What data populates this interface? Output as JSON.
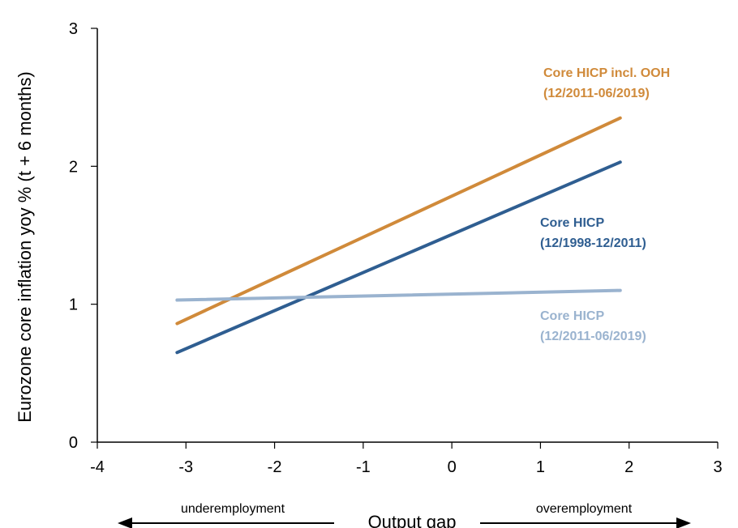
{
  "chart_data": {
    "type": "line",
    "xlabel": "Output gap",
    "ylabel": "Eurozone core inflation yoy % (t + 6 months)",
    "xlim": [
      -4,
      3
    ],
    "ylim": [
      0,
      3
    ],
    "x_ticks": [
      "-4",
      "-3",
      "-2",
      "-1",
      "0",
      "1",
      "2",
      "3"
    ],
    "y_ticks": [
      "0",
      "1",
      "2",
      "3"
    ],
    "grid": false,
    "legend": "none",
    "series": [
      {
        "name": "Core HICP incl. OOH",
        "period": "(12/2011-06/2019)",
        "color": "#d08a3a",
        "x": [
          -3.1,
          1.9
        ],
        "y": [
          0.86,
          2.35
        ]
      },
      {
        "name": "Core HICP",
        "period": "(12/1998-12/2011)",
        "color": "#2f5e91",
        "x": [
          -3.1,
          1.9
        ],
        "y": [
          0.65,
          2.03
        ]
      },
      {
        "name": "Core HICP",
        "period": "(12/2011-06/2019)",
        "color": "#9ab3cf",
        "x": [
          -3.1,
          1.9
        ],
        "y": [
          1.03,
          1.1
        ]
      }
    ],
    "annotations": {
      "left_arrow_label": "underemployment",
      "right_arrow_label": "overemployment"
    }
  }
}
